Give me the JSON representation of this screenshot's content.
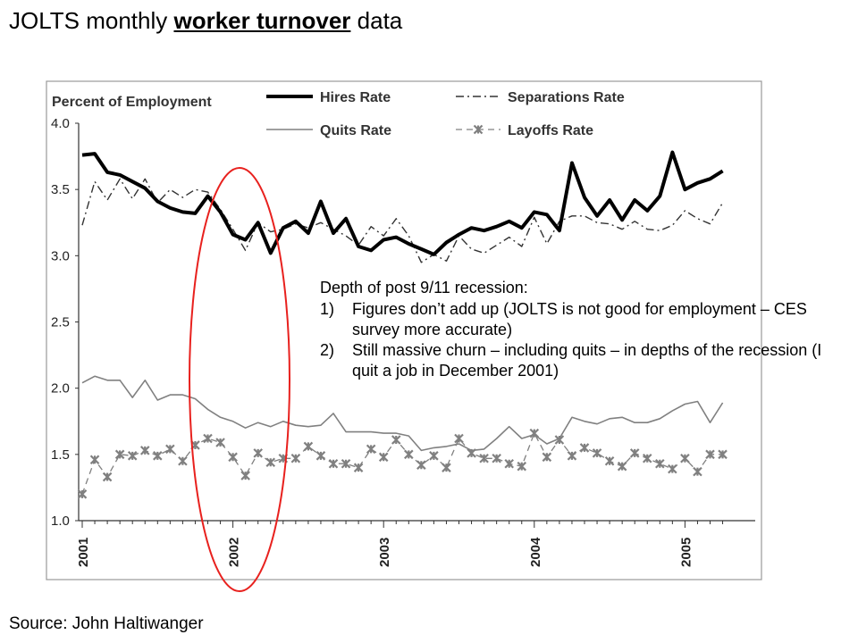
{
  "slide": {
    "title_prefix": "JOLTS monthly ",
    "title_highlight": "worker turnover",
    "title_suffix": " data",
    "source": "Source: John Haltiwanger"
  },
  "annotation": {
    "heading": "Depth of post 9/11 recession:",
    "points": [
      {
        "num": "1)",
        "text": "Figures don’t add up (JOLTS is not good for employment – CES survey more accurate)"
      },
      {
        "num": "2)",
        "text": "Still massive churn – including quits – in depths of the recession (I quit a job in December 2001)"
      }
    ]
  },
  "colors": {
    "hires": "#000000",
    "separations": "#333333",
    "quits": "#808080",
    "layoffs": "#808080",
    "highlight_ellipse": "#e8211e"
  },
  "chart_data": {
    "type": "line",
    "title": "",
    "ylabel": "Percent of Employment",
    "xlabel": "",
    "ylim": [
      1.0,
      4.0
    ],
    "yticks": [
      "1.0",
      "1.5",
      "2.0",
      "2.5",
      "3.0",
      "3.5",
      "4.0"
    ],
    "xtick_labels": [
      "2001",
      "2002",
      "2003",
      "2004",
      "2005"
    ],
    "x_start": "2001-01",
    "grid": false,
    "legend": [
      "Hires Rate",
      "Separations Rate",
      "Quits Rate",
      "Layoffs Rate"
    ],
    "series": [
      {
        "name": "Hires Rate",
        "style": "thick-solid",
        "values": [
          3.76,
          3.77,
          3.63,
          3.61,
          3.56,
          3.51,
          3.41,
          3.36,
          3.33,
          3.32,
          3.45,
          3.33,
          3.16,
          3.12,
          3.25,
          3.02,
          3.21,
          3.26,
          3.17,
          3.41,
          3.17,
          3.28,
          3.07,
          3.04,
          3.12,
          3.14,
          3.09,
          3.05,
          3.01,
          3.1,
          3.16,
          3.21,
          3.19,
          3.22,
          3.26,
          3.21,
          3.33,
          3.31,
          3.19,
          3.7,
          3.44,
          3.3,
          3.42,
          3.27,
          3.42,
          3.34,
          3.45,
          3.78,
          3.5,
          3.55,
          3.58,
          3.64
        ]
      },
      {
        "name": "Separations Rate",
        "style": "dash-dot",
        "values": [
          3.23,
          3.56,
          3.42,
          3.58,
          3.43,
          3.58,
          3.4,
          3.5,
          3.44,
          3.5,
          3.48,
          3.35,
          3.2,
          3.04,
          3.25,
          3.18,
          3.2,
          3.24,
          3.21,
          3.25,
          3.2,
          3.15,
          3.08,
          3.22,
          3.15,
          3.28,
          3.15,
          2.95,
          3.01,
          2.96,
          3.15,
          3.05,
          3.02,
          3.08,
          3.14,
          3.07,
          3.29,
          3.09,
          3.26,
          3.3,
          3.3,
          3.25,
          3.24,
          3.2,
          3.26,
          3.2,
          3.19,
          3.23,
          3.34,
          3.28,
          3.24,
          3.4
        ]
      },
      {
        "name": "Quits Rate",
        "style": "thin-solid",
        "values": [
          2.04,
          2.09,
          2.06,
          2.06,
          1.93,
          2.06,
          1.91,
          1.95,
          1.95,
          1.92,
          1.84,
          1.78,
          1.75,
          1.7,
          1.74,
          1.71,
          1.75,
          1.72,
          1.71,
          1.72,
          1.81,
          1.67,
          1.67,
          1.67,
          1.66,
          1.66,
          1.64,
          1.53,
          1.55,
          1.56,
          1.58,
          1.53,
          1.54,
          1.62,
          1.71,
          1.62,
          1.65,
          1.58,
          1.62,
          1.78,
          1.75,
          1.73,
          1.77,
          1.78,
          1.74,
          1.74,
          1.77,
          1.83,
          1.88,
          1.9,
          1.74,
          1.89
        ]
      },
      {
        "name": "Layoffs Rate",
        "style": "dashed-star",
        "values": [
          1.2,
          1.46,
          1.33,
          1.5,
          1.49,
          1.53,
          1.49,
          1.54,
          1.45,
          1.57,
          1.62,
          1.59,
          1.48,
          1.34,
          1.51,
          1.44,
          1.47,
          1.47,
          1.56,
          1.49,
          1.43,
          1.43,
          1.4,
          1.54,
          1.48,
          1.61,
          1.5,
          1.42,
          1.49,
          1.4,
          1.62,
          1.51,
          1.47,
          1.47,
          1.43,
          1.41,
          1.66,
          1.48,
          1.61,
          1.49,
          1.55,
          1.51,
          1.45,
          1.41,
          1.51,
          1.47,
          1.43,
          1.39,
          1.47,
          1.37,
          1.5,
          1.5
        ]
      }
    ]
  }
}
